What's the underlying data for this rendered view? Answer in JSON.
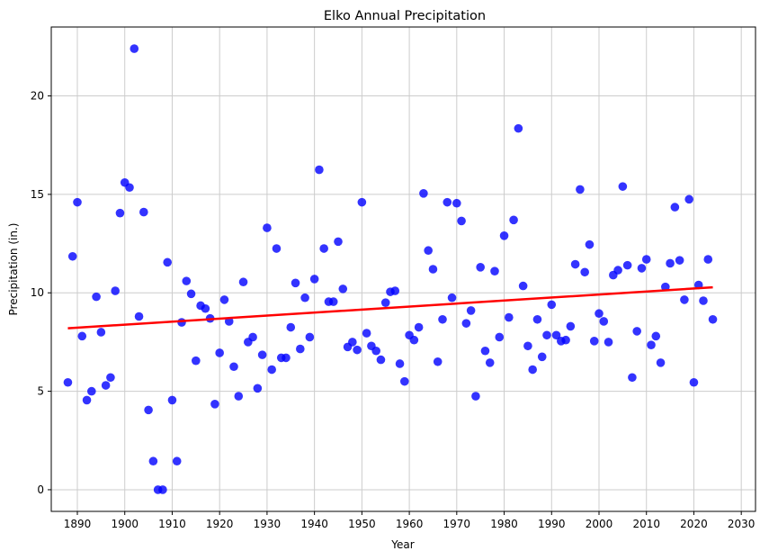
{
  "chart_data": {
    "type": "scatter",
    "title": "Elko Annual Precipitation",
    "xlabel": "Year",
    "ylabel": "Precipitation (in.)",
    "xlim": [
      1884.5,
      2033
    ],
    "ylim": [
      -1.1,
      23.5
    ],
    "xticks": [
      1890,
      1900,
      1910,
      1920,
      1930,
      1940,
      1950,
      1960,
      1970,
      1980,
      1990,
      2000,
      2010,
      2020,
      2030
    ],
    "yticks": [
      0,
      5,
      10,
      15,
      20
    ],
    "grid": true,
    "colors": {
      "points": "#0000ff",
      "trend": "#ff0000",
      "grid": "#cccccc"
    },
    "points": [
      [
        1888,
        5.45
      ],
      [
        1889,
        11.85
      ],
      [
        1890,
        14.6
      ],
      [
        1891,
        7.8
      ],
      [
        1892,
        4.55
      ],
      [
        1893,
        5.0
      ],
      [
        1894,
        9.8
      ],
      [
        1895,
        8.0
      ],
      [
        1896,
        5.3
      ],
      [
        1897,
        5.7
      ],
      [
        1898,
        10.1
      ],
      [
        1899,
        14.05
      ],
      [
        1900,
        15.6
      ],
      [
        1901,
        15.35
      ],
      [
        1902,
        22.4
      ],
      [
        1903,
        8.8
      ],
      [
        1904,
        14.1
      ],
      [
        1905,
        4.05
      ],
      [
        1906,
        1.45
      ],
      [
        1907,
        0.0
      ],
      [
        1908,
        0.0
      ],
      [
        1909,
        11.55
      ],
      [
        1910,
        4.55
      ],
      [
        1911,
        1.45
      ],
      [
        1912,
        8.5
      ],
      [
        1913,
        10.6
      ],
      [
        1914,
        9.95
      ],
      [
        1915,
        6.55
      ],
      [
        1916,
        9.35
      ],
      [
        1917,
        9.2
      ],
      [
        1918,
        8.7
      ],
      [
        1919,
        4.35
      ],
      [
        1920,
        6.95
      ],
      [
        1921,
        9.65
      ],
      [
        1922,
        8.55
      ],
      [
        1923,
        6.25
      ],
      [
        1924,
        4.75
      ],
      [
        1925,
        10.55
      ],
      [
        1926,
        7.5
      ],
      [
        1927,
        7.75
      ],
      [
        1928,
        5.15
      ],
      [
        1929,
        6.85
      ],
      [
        1930,
        13.3
      ],
      [
        1931,
        6.1
      ],
      [
        1932,
        12.25
      ],
      [
        1933,
        6.7
      ],
      [
        1934,
        6.7
      ],
      [
        1935,
        8.25
      ],
      [
        1936,
        10.5
      ],
      [
        1937,
        7.15
      ],
      [
        1938,
        9.75
      ],
      [
        1939,
        7.75
      ],
      [
        1940,
        10.7
      ],
      [
        1941,
        16.25
      ],
      [
        1942,
        12.25
      ],
      [
        1943,
        9.55
      ],
      [
        1944,
        9.55
      ],
      [
        1945,
        12.6
      ],
      [
        1946,
        10.2
      ],
      [
        1947,
        7.25
      ],
      [
        1948,
        7.5
      ],
      [
        1949,
        7.1
      ],
      [
        1950,
        14.6
      ],
      [
        1951,
        7.95
      ],
      [
        1952,
        7.3
      ],
      [
        1953,
        7.05
      ],
      [
        1954,
        6.6
      ],
      [
        1955,
        9.5
      ],
      [
        1956,
        10.05
      ],
      [
        1957,
        10.1
      ],
      [
        1958,
        6.4
      ],
      [
        1959,
        5.5
      ],
      [
        1960,
        7.85
      ],
      [
        1961,
        7.6
      ],
      [
        1962,
        8.25
      ],
      [
        1963,
        15.05
      ],
      [
        1964,
        12.15
      ],
      [
        1965,
        11.2
      ],
      [
        1966,
        6.5
      ],
      [
        1967,
        8.65
      ],
      [
        1968,
        14.6
      ],
      [
        1969,
        9.75
      ],
      [
        1970,
        14.55
      ],
      [
        1971,
        13.65
      ],
      [
        1972,
        8.45
      ],
      [
        1973,
        9.1
      ],
      [
        1974,
        4.75
      ],
      [
        1975,
        11.3
      ],
      [
        1976,
        7.05
      ],
      [
        1977,
        6.45
      ],
      [
        1978,
        11.1
      ],
      [
        1979,
        7.75
      ],
      [
        1980,
        12.9
      ],
      [
        1981,
        8.75
      ],
      [
        1982,
        13.7
      ],
      [
        1983,
        18.35
      ],
      [
        1984,
        10.35
      ],
      [
        1985,
        7.3
      ],
      [
        1986,
        6.1
      ],
      [
        1987,
        8.65
      ],
      [
        1988,
        6.75
      ],
      [
        1989,
        7.85
      ],
      [
        1990,
        9.4
      ],
      [
        1991,
        7.85
      ],
      [
        1992,
        7.55
      ],
      [
        1993,
        7.6
      ],
      [
        1994,
        8.3
      ],
      [
        1995,
        11.45
      ],
      [
        1996,
        15.25
      ],
      [
        1997,
        11.05
      ],
      [
        1998,
        12.45
      ],
      [
        1999,
        7.55
      ],
      [
        2000,
        8.95
      ],
      [
        2001,
        8.55
      ],
      [
        2002,
        7.5
      ],
      [
        2003,
        10.9
      ],
      [
        2004,
        11.15
      ],
      [
        2005,
        15.4
      ],
      [
        2006,
        11.4
      ],
      [
        2007,
        5.7
      ],
      [
        2008,
        8.05
      ],
      [
        2009,
        11.25
      ],
      [
        2010,
        11.7
      ],
      [
        2011,
        7.35
      ],
      [
        2012,
        7.8
      ],
      [
        2013,
        6.45
      ],
      [
        2014,
        10.3
      ],
      [
        2015,
        11.5
      ],
      [
        2016,
        14.35
      ],
      [
        2017,
        11.65
      ],
      [
        2018,
        9.65
      ],
      [
        2019,
        14.75
      ],
      [
        2020,
        5.45
      ],
      [
        2021,
        10.4
      ],
      [
        2022,
        9.6
      ],
      [
        2023,
        11.7
      ],
      [
        2024,
        8.65
      ]
    ],
    "trend_line": {
      "x": [
        1888,
        2024
      ],
      "y": [
        8.2,
        10.28
      ]
    }
  }
}
